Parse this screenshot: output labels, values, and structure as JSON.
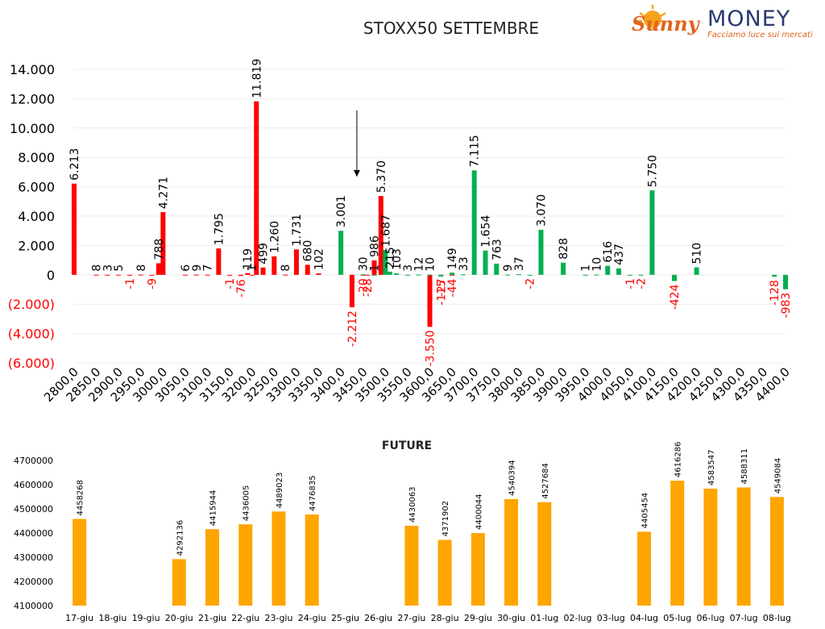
{
  "logo": {
    "brand_sunny": "Sunny",
    "brand_money": "MONEY",
    "tagline": "Facciamo luce sui mercati"
  },
  "chart_data": [
    {
      "type": "bar",
      "title": "STOXX50 SETTEMBRE",
      "xlabel": "",
      "ylabel": "",
      "ylim": [
        -6000,
        14000
      ],
      "y_ticks": [
        "(6.000)",
        "(4.000)",
        "(2.000)",
        "0",
        "2.000",
        "4.000",
        "6.000",
        "8.000",
        "10.000",
        "12.000",
        "14.000"
      ],
      "y_tick_values": [
        -6000,
        -4000,
        -2000,
        0,
        2000,
        4000,
        6000,
        8000,
        10000,
        12000,
        14000
      ],
      "x_ticks": [
        "2800,0",
        "2850,0",
        "2900,0",
        "2950,0",
        "3000,0",
        "3050,0",
        "3100,0",
        "3150,0",
        "3200,0",
        "3250,0",
        "3300,0",
        "3350,0",
        "3400,0",
        "3450,0",
        "3500,0",
        "3550,0",
        "3600,0",
        "3650,0",
        "3700,0",
        "3750,0",
        "3800,0",
        "3850,0",
        "3900,0",
        "3950,0",
        "4000,0",
        "4050,0",
        "4100,0",
        "4150,0",
        "4200,0",
        "4250,0",
        "4300,0",
        "4350,0",
        "4400,0"
      ],
      "x_tick_values": [
        2800,
        2850,
        2900,
        2950,
        3000,
        3050,
        3100,
        3150,
        3200,
        3250,
        3300,
        3350,
        3400,
        3450,
        3500,
        3550,
        3600,
        3650,
        3700,
        3750,
        3800,
        3850,
        3900,
        3950,
        4000,
        4050,
        4100,
        4150,
        4200,
        4250,
        4300,
        4350,
        4400
      ],
      "xlim": [
        2800,
        4400
      ],
      "grid": true,
      "colors": {
        "put": "#ff0000",
        "call": "#00b050",
        "negative_label": "#ff0000",
        "label": "#000000"
      },
      "annotation": {
        "type": "arrow",
        "x": 3425,
        "y_from": 11200,
        "y_to": 6700
      },
      "series": [
        {
          "points": [
            {
              "x": 2800,
              "v": 6213,
              "l": "6.213"
            },
            {
              "x": 2850,
              "v": 8,
              "l": "8"
            },
            {
              "x": 2875,
              "v": 3,
              "l": "3"
            },
            {
              "x": 2900,
              "v": 5,
              "l": "5"
            },
            {
              "x": 2925,
              "v": -1,
              "l": "-1"
            },
            {
              "x": 2950,
              "v": 8,
              "l": "8"
            },
            {
              "x": 2975,
              "v": -9,
              "l": "-9"
            },
            {
              "x": 2990,
              "v": 788,
              "l": "788"
            },
            {
              "x": 3000,
              "v": 4271,
              "l": "4.271"
            },
            {
              "x": 3050,
              "v": 6,
              "l": "6"
            },
            {
              "x": 3075,
              "v": 9,
              "l": "9"
            },
            {
              "x": 3100,
              "v": 7,
              "l": "7"
            },
            {
              "x": 3125,
              "v": 1795,
              "l": "1.795"
            },
            {
              "x": 3150,
              "v": -1,
              "l": "-1"
            },
            {
              "x": 3175,
              "v": -76,
              "l": "-76"
            },
            {
              "x": 3190,
              "v": 119,
              "l": "119"
            },
            {
              "x": 3200,
              "v": 1,
              "l": "1"
            },
            {
              "x": 3210,
              "v": 11819,
              "l": "11.819"
            },
            {
              "x": 3225,
              "v": 499,
              "l": "499"
            },
            {
              "x": 3250,
              "v": 1260,
              "l": "1.260"
            },
            {
              "x": 3275,
              "v": 8,
              "l": "8"
            },
            {
              "x": 3300,
              "v": 1731,
              "l": "1.731"
            },
            {
              "x": 3325,
              "v": 680,
              "l": "680"
            },
            {
              "x": 3350,
              "v": 102,
              "l": "102"
            },
            {
              "x": 3425,
              "v": -2212,
              "l": "-2.212"
            },
            {
              "x": 3450,
              "v": -20,
              "l": "-20"
            },
            {
              "x": 3460,
              "v": -28,
              "l": "-28"
            },
            {
              "x": 3475,
              "v": 986,
              "l": "986"
            },
            {
              "x": 3490,
              "v": 5370,
              "l": "5.370"
            },
            {
              "x": 3600,
              "v": -3550,
              "l": "-3.550"
            },
            {
              "x": 3625,
              "v": -27,
              "l": "-27"
            },
            {
              "x": 3650,
              "v": -44,
              "l": "-44"
            }
          ]
        },
        {
          "points": [
            {
              "x": 3400,
              "v": 3001,
              "l": "3.001"
            },
            {
              "x": 3450,
              "v": 30,
              "l": "30"
            },
            {
              "x": 3475,
              "v": 1,
              "l": "1"
            },
            {
              "x": 3500,
              "v": 1687,
              "l": "1.687"
            },
            {
              "x": 3510,
              "v": 215,
              "l": "215"
            },
            {
              "x": 3525,
              "v": 103,
              "l": "103"
            },
            {
              "x": 3550,
              "v": 3,
              "l": "3"
            },
            {
              "x": 3575,
              "v": 12,
              "l": "12"
            },
            {
              "x": 3600,
              "v": 10,
              "l": "10"
            },
            {
              "x": 3625,
              "v": -115,
              "l": "-115"
            },
            {
              "x": 3650,
              "v": 149,
              "l": "149"
            },
            {
              "x": 3675,
              "v": 33,
              "l": "33"
            },
            {
              "x": 3700,
              "v": 7115,
              "l": "7.115"
            },
            {
              "x": 3725,
              "v": 1654,
              "l": "1.654"
            },
            {
              "x": 3750,
              "v": 763,
              "l": "763"
            },
            {
              "x": 3775,
              "v": 9,
              "l": "9"
            },
            {
              "x": 3800,
              "v": 37,
              "l": "37"
            },
            {
              "x": 3825,
              "v": -2,
              "l": "-2"
            },
            {
              "x": 3850,
              "v": 3070,
              "l": "3.070"
            },
            {
              "x": 3900,
              "v": 828,
              "l": "828"
            },
            {
              "x": 3950,
              "v": 1,
              "l": "1"
            },
            {
              "x": 3975,
              "v": 10,
              "l": "10"
            },
            {
              "x": 4000,
              "v": 616,
              "l": "616"
            },
            {
              "x": 4025,
              "v": 437,
              "l": "437"
            },
            {
              "x": 4050,
              "v": -1,
              "l": "-1"
            },
            {
              "x": 4075,
              "v": -2,
              "l": "-2"
            },
            {
              "x": 4100,
              "v": 5750,
              "l": "5.750"
            },
            {
              "x": 4150,
              "v": -424,
              "l": "-424"
            },
            {
              "x": 4200,
              "v": 510,
              "l": "510"
            },
            {
              "x": 4375,
              "v": -128,
              "l": "-128"
            },
            {
              "x": 4400,
              "v": -983,
              "l": "-983"
            }
          ]
        }
      ]
    },
    {
      "type": "bar",
      "title": "FUTURE",
      "xlabel": "",
      "ylabel": "",
      "ylim": [
        4100000,
        4700000
      ],
      "y_ticks": [
        "4100000",
        "4200000",
        "4300000",
        "4400000",
        "4500000",
        "4600000",
        "4700000"
      ],
      "y_tick_values": [
        4100000,
        4200000,
        4300000,
        4400000,
        4500000,
        4600000,
        4700000
      ],
      "grid": false,
      "colors": {
        "bar": "#ffa500"
      },
      "categories": [
        "17-giu",
        "18-giu",
        "19-giu",
        "20-giu",
        "21-giu",
        "22-giu",
        "23-giu",
        "24-giu",
        "25-giu",
        "26-giu",
        "27-giu",
        "28-giu",
        "29-giu",
        "30-giu",
        "01-lug",
        "02-lug",
        "03-lug",
        "04-lug",
        "05-lug",
        "06-lug",
        "07-lug",
        "08-lug"
      ],
      "values": [
        4458268,
        null,
        null,
        4292136,
        4415944,
        4436005,
        4489023,
        4476835,
        null,
        null,
        4430063,
        4371902,
        4400044,
        4540394,
        4527684,
        null,
        null,
        4405454,
        4616286,
        4583547,
        4588311,
        4549084
      ],
      "value_labels": [
        "4458268",
        "",
        "",
        "4292136",
        "4415944",
        "4436005",
        "4489023",
        "4476835",
        "",
        "",
        "4430063",
        "4371902",
        "4400044",
        "4540394",
        "4527684",
        "",
        "",
        "4405454",
        "4616286",
        "4583547",
        "4588311",
        "4549084"
      ]
    }
  ]
}
